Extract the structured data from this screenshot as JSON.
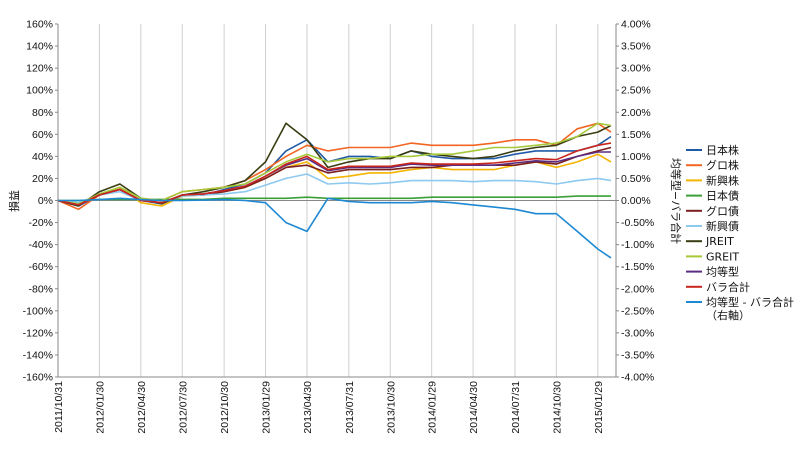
{
  "chart_data": {
    "type": "line",
    "ylabel_left": "損益",
    "ylabel_right": "均等型−バラ合計",
    "y_left": {
      "min": -160,
      "max": 160,
      "step": 20,
      "tick_labels": [
        "160%",
        "140%",
        "120%",
        "100%",
        "80%",
        "60%",
        "40%",
        "20%",
        "0%",
        "-20%",
        "-40%",
        "-60%",
        "-80%",
        "-100%",
        "-120%",
        "-140%",
        "-160%"
      ]
    },
    "y_right": {
      "min": -4,
      "max": 4,
      "step": 0.5,
      "tick_labels": [
        "4.00%",
        "3.50%",
        "3.00%",
        "2.50%",
        "2.00%",
        "1.50%",
        "1.00%",
        "0.50%",
        "0.00%",
        "-0.50%",
        "-1.00%",
        "-1.50%",
        "-2.00%",
        "-2.50%",
        "-3.00%",
        "-3.50%",
        "-4.00%"
      ]
    },
    "x_ticks": [
      "2011/10/31",
      "2012/01/30",
      "2012/04/30",
      "2012/07/30",
      "2012/10/30",
      "2013/01/29",
      "2013/04/30",
      "2013/07/31",
      "2013/10/30",
      "2014/01/29",
      "2014/04/30",
      "2014/07/31",
      "2014/10/30",
      "2015/01/29"
    ],
    "x": [
      "2011/10/31",
      "2011/12/15",
      "2012/01/30",
      "2012/03/15",
      "2012/04/30",
      "2012/06/15",
      "2012/07/30",
      "2012/09/15",
      "2012/10/30",
      "2012/12/15",
      "2013/01/29",
      "2013/03/15",
      "2013/04/30",
      "2013/06/15",
      "2013/07/31",
      "2013/09/15",
      "2013/10/30",
      "2013/12/15",
      "2014/01/29",
      "2014/03/15",
      "2014/04/30",
      "2014/06/15",
      "2014/07/31",
      "2014/09/15",
      "2014/10/30",
      "2014/12/15",
      "2015/01/29",
      "2015/02/27"
    ],
    "series": [
      {
        "name": "日本株",
        "color": "#1f5aa6",
        "axis": "left",
        "values": [
          0,
          -5,
          5,
          10,
          0,
          -3,
          5,
          5,
          10,
          15,
          25,
          45,
          55,
          35,
          40,
          40,
          38,
          45,
          40,
          38,
          38,
          38,
          42,
          45,
          45,
          45,
          50,
          58
        ]
      },
      {
        "name": "グロ株",
        "color": "#f26522",
        "axis": "left",
        "values": [
          0,
          -8,
          5,
          12,
          2,
          0,
          8,
          10,
          12,
          18,
          28,
          40,
          50,
          45,
          48,
          48,
          48,
          52,
          50,
          50,
          50,
          52,
          55,
          55,
          50,
          65,
          70,
          62
        ]
      },
      {
        "name": "新興株",
        "color": "#f4b400",
        "axis": "left",
        "values": [
          0,
          -4,
          5,
          12,
          -2,
          -5,
          4,
          5,
          8,
          12,
          20,
          30,
          35,
          20,
          22,
          25,
          25,
          28,
          30,
          28,
          28,
          28,
          32,
          35,
          30,
          35,
          42,
          35
        ]
      },
      {
        "name": "日本債",
        "color": "#3aa035",
        "axis": "left",
        "values": [
          0,
          0,
          1,
          1,
          1,
          1,
          1,
          1,
          2,
          2,
          2,
          2,
          3,
          2,
          2,
          2,
          2,
          2,
          3,
          3,
          3,
          3,
          3,
          3,
          3,
          4,
          4,
          4
        ]
      },
      {
        "name": "グロ債",
        "color": "#7b1f1f",
        "axis": "left",
        "values": [
          0,
          -3,
          5,
          10,
          0,
          -2,
          5,
          5,
          8,
          12,
          20,
          30,
          32,
          25,
          28,
          28,
          28,
          30,
          30,
          32,
          32,
          32,
          32,
          35,
          33,
          40,
          45,
          48
        ]
      },
      {
        "name": "新興債",
        "color": "#8ec9f0",
        "axis": "left",
        "values": [
          0,
          -2,
          5,
          8,
          0,
          -2,
          4,
          5,
          6,
          8,
          14,
          20,
          24,
          15,
          16,
          15,
          16,
          18,
          18,
          18,
          17,
          18,
          18,
          17,
          15,
          18,
          20,
          18
        ]
      },
      {
        "name": "JREIT",
        "color": "#3a3d12",
        "axis": "left",
        "values": [
          0,
          -5,
          8,
          15,
          2,
          -3,
          5,
          8,
          12,
          18,
          35,
          70,
          55,
          30,
          35,
          38,
          38,
          45,
          42,
          40,
          38,
          40,
          45,
          48,
          50,
          58,
          62,
          68
        ]
      },
      {
        "name": "GREIT",
        "color": "#a6c93a",
        "axis": "left",
        "values": [
          0,
          -3,
          6,
          12,
          2,
          0,
          8,
          10,
          12,
          15,
          25,
          35,
          42,
          35,
          38,
          38,
          40,
          40,
          42,
          42,
          45,
          48,
          48,
          50,
          52,
          58,
          70,
          68
        ]
      },
      {
        "name": "均等型",
        "color": "#5a2d82",
        "axis": "left",
        "values": [
          0,
          -4,
          5,
          10,
          0,
          -2,
          5,
          6,
          9,
          13,
          22,
          32,
          38,
          27,
          30,
          30,
          30,
          33,
          32,
          32,
          32,
          32,
          34,
          36,
          35,
          40,
          44,
          44
        ]
      },
      {
        "name": "バラ合計",
        "color": "#c9251d",
        "axis": "left",
        "values": [
          0,
          -4,
          5,
          10,
          0,
          -2,
          5,
          6,
          9,
          13,
          22,
          33,
          40,
          28,
          31,
          31,
          31,
          34,
          33,
          33,
          33,
          34,
          36,
          38,
          37,
          45,
          50,
          52
        ]
      },
      {
        "name": "均等型 - バラ合計\n（右軸）",
        "color": "#1e88d2",
        "axis": "right",
        "values": [
          0,
          0,
          0.02,
          0.05,
          0.02,
          0,
          0,
          0.01,
          0.02,
          0,
          -0.05,
          -0.5,
          -0.7,
          0.05,
          -0.02,
          -0.05,
          -0.05,
          -0.05,
          -0.02,
          -0.05,
          -0.1,
          -0.15,
          -0.2,
          -0.3,
          -0.3,
          -0.7,
          -1.1,
          -1.3
        ]
      }
    ],
    "grid": "vertical",
    "legend_position": "right"
  }
}
